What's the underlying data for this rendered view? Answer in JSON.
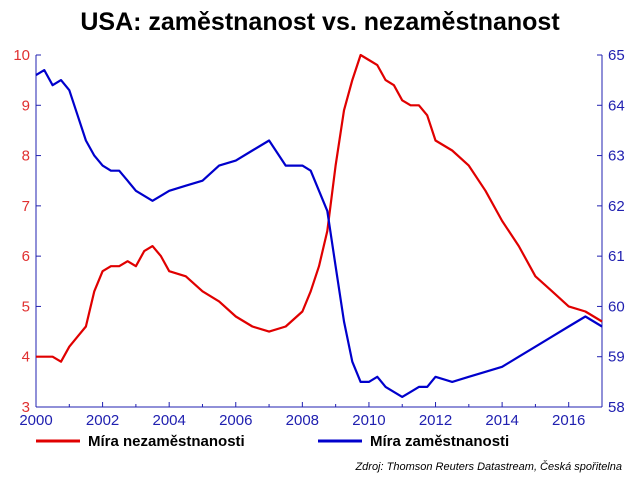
{
  "chart_data": {
    "type": "line",
    "title": "USA: zaměstnanost vs. nezaměstnanost",
    "source": "Zdroj: Thomson Reuters Datastream, Česká spořitelna",
    "x_ticks": [
      "2000",
      "2002",
      "2004",
      "2006",
      "2008",
      "2010",
      "2012",
      "2014",
      "2016"
    ],
    "xlim": [
      2000,
      2017
    ],
    "y_left": {
      "ticks": [
        "3",
        "4",
        "5",
        "6",
        "7",
        "8",
        "9",
        "10"
      ],
      "ylim": [
        3,
        10
      ],
      "color": "#e03030"
    },
    "y_right": {
      "ticks": [
        "58",
        "59",
        "60",
        "61",
        "62",
        "63",
        "64",
        "65"
      ],
      "ylim": [
        58,
        65
      ],
      "color": "#2020b0"
    },
    "axis_color": "#2020b0",
    "series": [
      {
        "name": "Míra nezaměstnanosti",
        "color": "#e00000",
        "axis": "left",
        "x": [
          2000,
          2000.25,
          2000.5,
          2000.75,
          2001,
          2001.25,
          2001.5,
          2001.75,
          2002,
          2002.25,
          2002.5,
          2002.75,
          2003,
          2003.25,
          2003.5,
          2003.75,
          2004,
          2004.5,
          2005,
          2005.5,
          2006,
          2006.5,
          2007,
          2007.5,
          2008,
          2008.25,
          2008.5,
          2008.75,
          2009,
          2009.25,
          2009.5,
          2009.75,
          2010,
          2010.25,
          2010.5,
          2010.75,
          2011,
          2011.25,
          2011.5,
          2011.75,
          2012,
          2012.5,
          2013,
          2013.5,
          2014,
          2014.5,
          2015,
          2015.5,
          2016,
          2016.5,
          2016.75,
          2017
        ],
        "y": [
          4.0,
          4.0,
          4.0,
          3.9,
          4.2,
          4.4,
          4.6,
          5.3,
          5.7,
          5.8,
          5.8,
          5.9,
          5.8,
          6.1,
          6.2,
          6.0,
          5.7,
          5.6,
          5.3,
          5.1,
          4.8,
          4.6,
          4.5,
          4.6,
          4.9,
          5.3,
          5.8,
          6.5,
          7.8,
          8.9,
          9.5,
          10.0,
          9.9,
          9.8,
          9.5,
          9.4,
          9.1,
          9.0,
          9.0,
          8.8,
          8.3,
          8.1,
          7.8,
          7.3,
          6.7,
          6.2,
          5.6,
          5.3,
          5.0,
          4.9,
          4.8,
          4.7
        ]
      },
      {
        "name": "Míra zaměstnanosti",
        "color": "#0000cc",
        "axis": "right",
        "x": [
          2000,
          2000.25,
          2000.5,
          2000.75,
          2001,
          2001.25,
          2001.5,
          2001.75,
          2002,
          2002.25,
          2002.5,
          2002.75,
          2003,
          2003.25,
          2003.5,
          2003.75,
          2004,
          2004.5,
          2005,
          2005.5,
          2006,
          2006.5,
          2007,
          2007.5,
          2008,
          2008.25,
          2008.5,
          2008.75,
          2009,
          2009.25,
          2009.5,
          2009.75,
          2010,
          2010.25,
          2010.5,
          2010.75,
          2011,
          2011.25,
          2011.5,
          2011.75,
          2012,
          2012.5,
          2013,
          2013.5,
          2014,
          2014.5,
          2015,
          2015.5,
          2016,
          2016.5,
          2016.75,
          2017
        ],
        "y": [
          64.6,
          64.7,
          64.4,
          64.5,
          64.3,
          63.8,
          63.3,
          63.0,
          62.8,
          62.7,
          62.7,
          62.5,
          62.3,
          62.2,
          62.1,
          62.2,
          62.3,
          62.4,
          62.5,
          62.8,
          62.9,
          63.1,
          63.3,
          62.8,
          62.8,
          62.7,
          62.3,
          61.9,
          60.8,
          59.7,
          58.9,
          58.5,
          58.5,
          58.6,
          58.4,
          58.3,
          58.2,
          58.3,
          58.4,
          58.4,
          58.6,
          58.5,
          58.6,
          58.7,
          58.8,
          59.0,
          59.2,
          59.4,
          59.6,
          59.8,
          59.7,
          59.6
        ]
      }
    ],
    "legend": [
      {
        "label": "Míra nezaměstnanosti",
        "color": "#e00000"
      },
      {
        "label": "Míra zaměstnanosti",
        "color": "#0000cc"
      }
    ],
    "legend_position": "bottom",
    "grid": false
  }
}
